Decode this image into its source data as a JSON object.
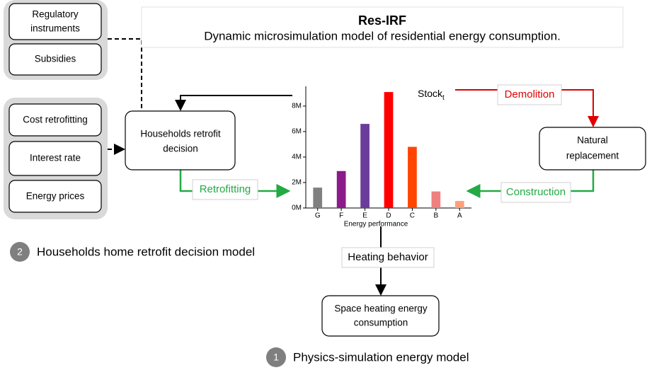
{
  "header": {
    "title": "Res-IRF",
    "subtitle": "Dynamic microsimulation model of residential energy consumption."
  },
  "policy_inputs": [
    {
      "lines": [
        "Regulatory",
        "instruments"
      ]
    },
    {
      "lines": [
        "Subsidies"
      ]
    }
  ],
  "economic_inputs": [
    {
      "lines": [
        "Cost retrofitting"
      ]
    },
    {
      "lines": [
        "Interest rate"
      ]
    },
    {
      "lines": [
        "Energy prices"
      ]
    }
  ],
  "nodes": [
    {
      "lines": [
        "Households retrofit",
        "decision"
      ]
    },
    {
      "lines": [
        "Natural",
        "replacement"
      ]
    },
    {
      "lines": [
        "Space heating energy",
        "consumption"
      ]
    }
  ],
  "edges": {
    "retrofitting": "Retrofitting",
    "demolition": "Demolition",
    "construction": "Construction",
    "heating": "Heating behavior"
  },
  "stock": {
    "label": "Stock",
    "subscript": "t"
  },
  "models": [
    {
      "number": "2",
      "label": "Households home retrofit decision model"
    },
    {
      "number": "1",
      "label": "Physics-simulation energy model"
    }
  ],
  "chart_data": {
    "type": "bar",
    "x_label": "Energy performance",
    "categories": [
      "G",
      "F",
      "E",
      "D",
      "C",
      "B",
      "A"
    ],
    "values": [
      1600000,
      2900000,
      6600000,
      9100000,
      4800000,
      1300000,
      550000
    ],
    "colors": [
      "#808080",
      "#8b1a8b",
      "#6a3d9a",
      "#ff0000",
      "#ff4500",
      "#f08080",
      "#ffa07a"
    ],
    "ylim": [
      0,
      9550000
    ],
    "yticks": [
      {
        "value": 0,
        "label": "0M"
      },
      {
        "value": 2000000,
        "label": "2M"
      },
      {
        "value": 4000000,
        "label": "4M"
      },
      {
        "value": 6000000,
        "label": "6M"
      },
      {
        "value": 8000000,
        "label": "8M"
      }
    ]
  }
}
